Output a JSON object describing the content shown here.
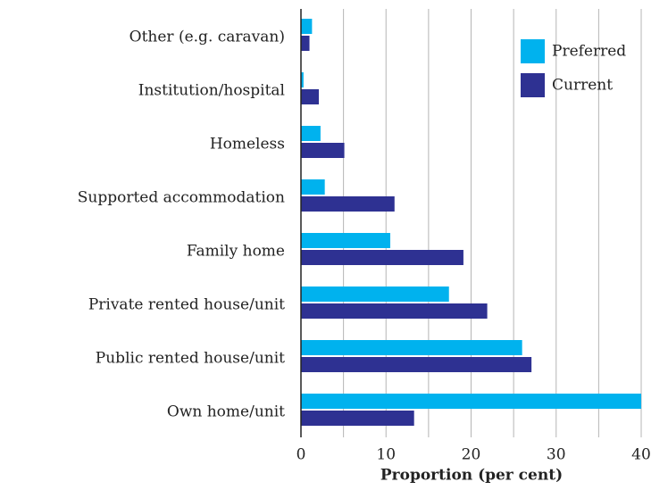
{
  "chart_data": {
    "type": "hbar",
    "categories": [
      "Other (e.g. caravan)",
      "Institution/hospital",
      "Homeless",
      "Supported accommodation",
      "Family home",
      "Private rented house/unit",
      "Public rented house/unit",
      "Own home/unit"
    ],
    "series": [
      {
        "name": "Preferred",
        "color": "#00b2ee",
        "values": [
          1.3,
          0.3,
          2.3,
          2.8,
          10.5,
          17.4,
          26.0,
          40.0
        ]
      },
      {
        "name": "Current",
        "color": "#2e3192",
        "values": [
          1.0,
          2.1,
          5.1,
          11.0,
          19.1,
          21.9,
          27.1,
          13.3
        ]
      }
    ],
    "x_label": "Proportion (per cent)",
    "xlim": [
      0,
      40
    ],
    "xticks": [
      0,
      10,
      20,
      30,
      40
    ],
    "minor_xticks": [
      5,
      15,
      25,
      35
    ],
    "grid": true,
    "legend": "upper right"
  }
}
